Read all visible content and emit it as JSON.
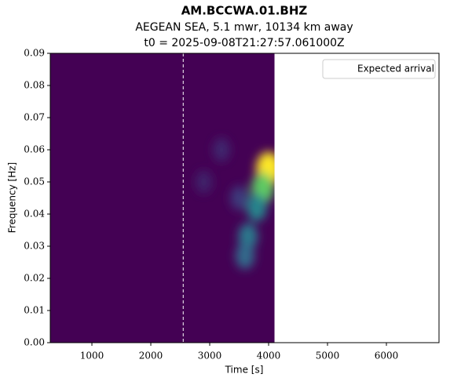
{
  "chart_data": {
    "type": "spectrogram",
    "title": "AM.BCCWA.01.BHZ",
    "subtitle": "AEGEAN SEA, 5.1 mwr, 10134 km away",
    "subtitle2": "t0 = 2025-09-08T21:27:57.061000Z",
    "xlabel": "Time [s]",
    "ylabel": "Frequency [Hz]",
    "xlim": [
      293,
      6893
    ],
    "ylim": [
      0,
      0.09
    ],
    "xticks": [
      1000,
      2000,
      3000,
      4000,
      5000,
      6000
    ],
    "yticks": [
      {
        "value": 0,
        "label": "0.00"
      },
      {
        "value": 0.01,
        "label": "0.01"
      },
      {
        "value": 0.02,
        "label": "0.02"
      },
      {
        "value": 0.03,
        "label": "0.03"
      },
      {
        "value": 0.04,
        "label": "0.04"
      },
      {
        "value": 0.05,
        "label": "0.05"
      },
      {
        "value": 0.06,
        "label": "0.06"
      },
      {
        "value": 0.07,
        "label": "0.07"
      },
      {
        "value": 0.08,
        "label": "0.08"
      },
      {
        "value": 0.09,
        "label": "0.09"
      }
    ],
    "time_range": [
      293,
      4100
    ],
    "expected_arrival": {
      "name": "Expected arrival",
      "time": 2550,
      "color": "#ffffff"
    },
    "hotspots": {
      "time": [
        4000,
        3900,
        3800,
        3650,
        3600,
        3500,
        3200,
        2900
      ],
      "frequency": [
        0.054,
        0.048,
        0.042,
        0.033,
        0.027,
        0.045,
        0.06,
        0.05
      ],
      "intensity": [
        1.0,
        0.75,
        0.45,
        0.4,
        0.35,
        0.18,
        0.12,
        0.1
      ]
    },
    "legend": "upper right"
  }
}
